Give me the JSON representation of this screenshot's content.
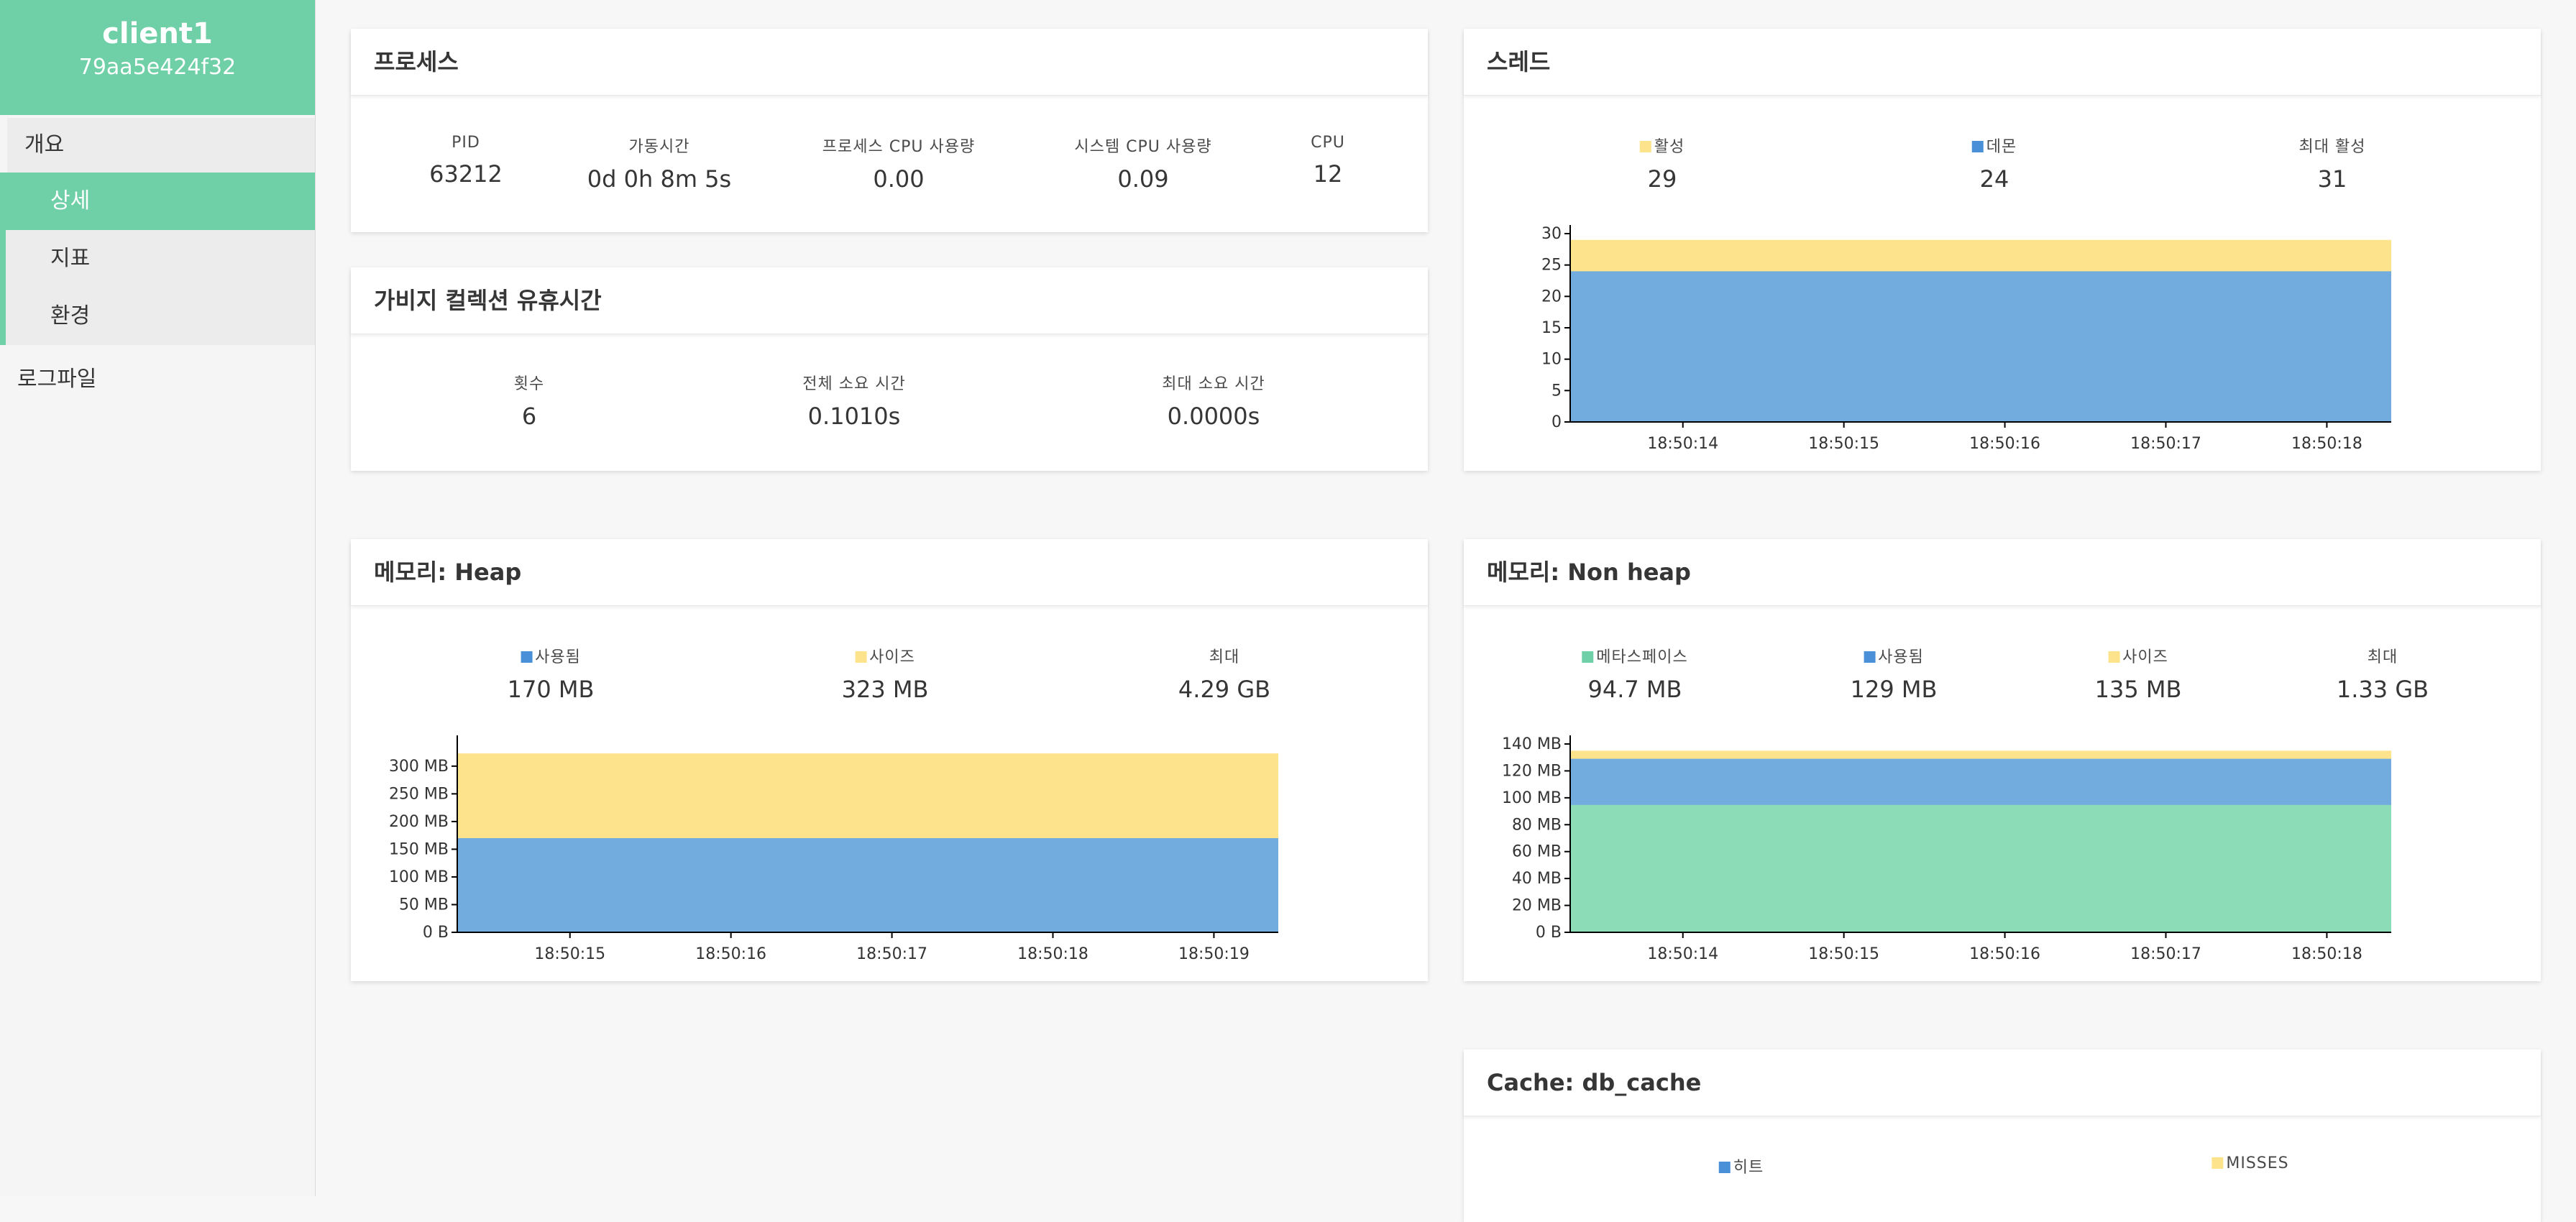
{
  "app": {
    "name": "client1",
    "id": "79aa5e424f32"
  },
  "nav": {
    "overview": "개요",
    "items": [
      {
        "label": "상세",
        "active": true
      },
      {
        "label": "지표",
        "active": false
      },
      {
        "label": "환경",
        "active": false
      }
    ],
    "logfile": "로그파일"
  },
  "colors": {
    "accent": "#6fcfa6",
    "blue": "#72acdf",
    "yellow": "#fde48c",
    "green": "#8cdcb8"
  },
  "process": {
    "title": "프로세스",
    "stats": [
      {
        "label": "PID",
        "value": "63212"
      },
      {
        "label": "가동시간",
        "value": "0d 0h 8m 5s"
      },
      {
        "label": "프로세스 CPU 사용량",
        "value": "0.00"
      },
      {
        "label": "시스템 CPU 사용량",
        "value": "0.09"
      },
      {
        "label": "CPU",
        "value": "12"
      }
    ]
  },
  "gc": {
    "title": "가비지 컬렉션 유휴시간",
    "stats": [
      {
        "label": "횟수",
        "value": "6"
      },
      {
        "label": "전체 소요 시간",
        "value": "0.1010s"
      },
      {
        "label": "최대 소요 시간",
        "value": "0.0000s"
      }
    ]
  },
  "threads": {
    "title": "스레드",
    "stats": [
      {
        "label": "활성",
        "value": "29",
        "swatch": "yellow"
      },
      {
        "label": "데몬",
        "value": "24",
        "swatch": "blue"
      },
      {
        "label": "최대 활성",
        "value": "31"
      }
    ]
  },
  "heap": {
    "title": "메모리: Heap",
    "stats": [
      {
        "label": "사용됨",
        "value": "170 MB",
        "swatch": "blue"
      },
      {
        "label": "사이즈",
        "value": "323 MB",
        "swatch": "yellow"
      },
      {
        "label": "최대",
        "value": "4.29 GB"
      }
    ]
  },
  "nonheap": {
    "title": "메모리: Non heap",
    "stats": [
      {
        "label": "메타스페이스",
        "value": "94.7 MB",
        "swatch": "green"
      },
      {
        "label": "사용됨",
        "value": "129 MB",
        "swatch": "blue"
      },
      {
        "label": "사이즈",
        "value": "135 MB",
        "swatch": "yellow"
      },
      {
        "label": "최대",
        "value": "1.33 GB"
      }
    ]
  },
  "cache": {
    "title": "Cache: db_cache",
    "stats": [
      {
        "label": "히트",
        "swatch": "blue"
      },
      {
        "label": "MISSES",
        "swatch": "yellow"
      }
    ]
  },
  "chart_data": [
    {
      "id": "threads",
      "type": "area",
      "x": [
        "18:50:14",
        "18:50:15",
        "18:50:16",
        "18:50:17",
        "18:50:18"
      ],
      "ylim": [
        0,
        30
      ],
      "yticks": [
        "0",
        "5",
        "10",
        "15",
        "20",
        "25",
        "30"
      ],
      "series": [
        {
          "name": "데몬",
          "color": "blue",
          "value": 24
        },
        {
          "name": "활성",
          "color": "yellow",
          "value": 29
        }
      ]
    },
    {
      "id": "heap",
      "type": "area",
      "x": [
        "18:50:15",
        "18:50:16",
        "18:50:17",
        "18:50:18",
        "18:50:19"
      ],
      "ylim": [
        0,
        340
      ],
      "yticks": [
        "0 B",
        "50 MB",
        "100 MB",
        "150 MB",
        "200 MB",
        "250 MB",
        "300 MB"
      ],
      "series": [
        {
          "name": "사용됨",
          "color": "blue",
          "value": 170
        },
        {
          "name": "사이즈",
          "color": "yellow",
          "value": 323
        }
      ]
    },
    {
      "id": "nonheap",
      "type": "area",
      "x": [
        "18:50:14",
        "18:50:15",
        "18:50:16",
        "18:50:17",
        "18:50:18"
      ],
      "ylim": [
        0,
        140
      ],
      "yticks": [
        "0 B",
        "20 MB",
        "40 MB",
        "60 MB",
        "80 MB",
        "100 MB",
        "120 MB",
        "140 MB"
      ],
      "series": [
        {
          "name": "메타스페이스",
          "color": "green",
          "value": 94.7
        },
        {
          "name": "사용됨",
          "color": "blue",
          "value": 129
        },
        {
          "name": "사이즈",
          "color": "yellow",
          "value": 135
        }
      ]
    }
  ]
}
